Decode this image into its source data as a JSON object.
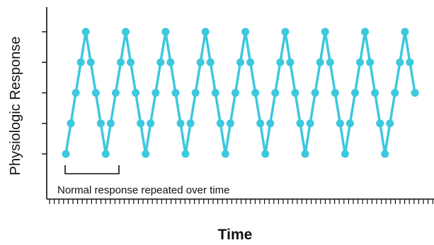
{
  "chart_data": {
    "type": "line",
    "xlabel": "Time",
    "ylabel": "Physiologic Response",
    "annotation": "Normal response repeated over time",
    "color": "#3cc8dd",
    "xlim": [
      0,
      70
    ],
    "ylim": [
      0,
      4
    ],
    "grid": false,
    "series": [
      {
        "x": [
          0,
          1,
          2,
          3,
          4,
          5,
          6,
          7,
          8,
          9,
          10,
          11,
          12,
          13,
          14,
          15,
          16,
          17,
          18,
          19,
          20,
          21,
          22,
          23,
          24,
          25,
          26,
          27,
          28,
          29,
          30,
          31,
          32,
          33,
          34,
          35,
          36,
          37,
          38,
          39,
          40,
          41,
          42,
          43,
          44,
          45,
          46,
          47,
          48,
          49,
          50,
          51,
          52,
          53,
          54,
          55,
          56,
          57,
          58,
          59,
          60,
          61,
          62,
          63,
          64,
          65,
          66,
          67,
          68,
          69,
          70
        ],
        "values": [
          0,
          1,
          2,
          3,
          4,
          3,
          2,
          1,
          0,
          1,
          2,
          3,
          4,
          3,
          2,
          1,
          0,
          1,
          2,
          3,
          4,
          3,
          2,
          1,
          0,
          1,
          2,
          3,
          4,
          3,
          2,
          1,
          0,
          1,
          2,
          3,
          4,
          3,
          2,
          1,
          0,
          1,
          2,
          3,
          4,
          3,
          2,
          1,
          0,
          1,
          2,
          3,
          4,
          3,
          2,
          1,
          0,
          1,
          2,
          3,
          4,
          3,
          2,
          1,
          0,
          1,
          2,
          3,
          4,
          3,
          2
        ]
      }
    ]
  }
}
